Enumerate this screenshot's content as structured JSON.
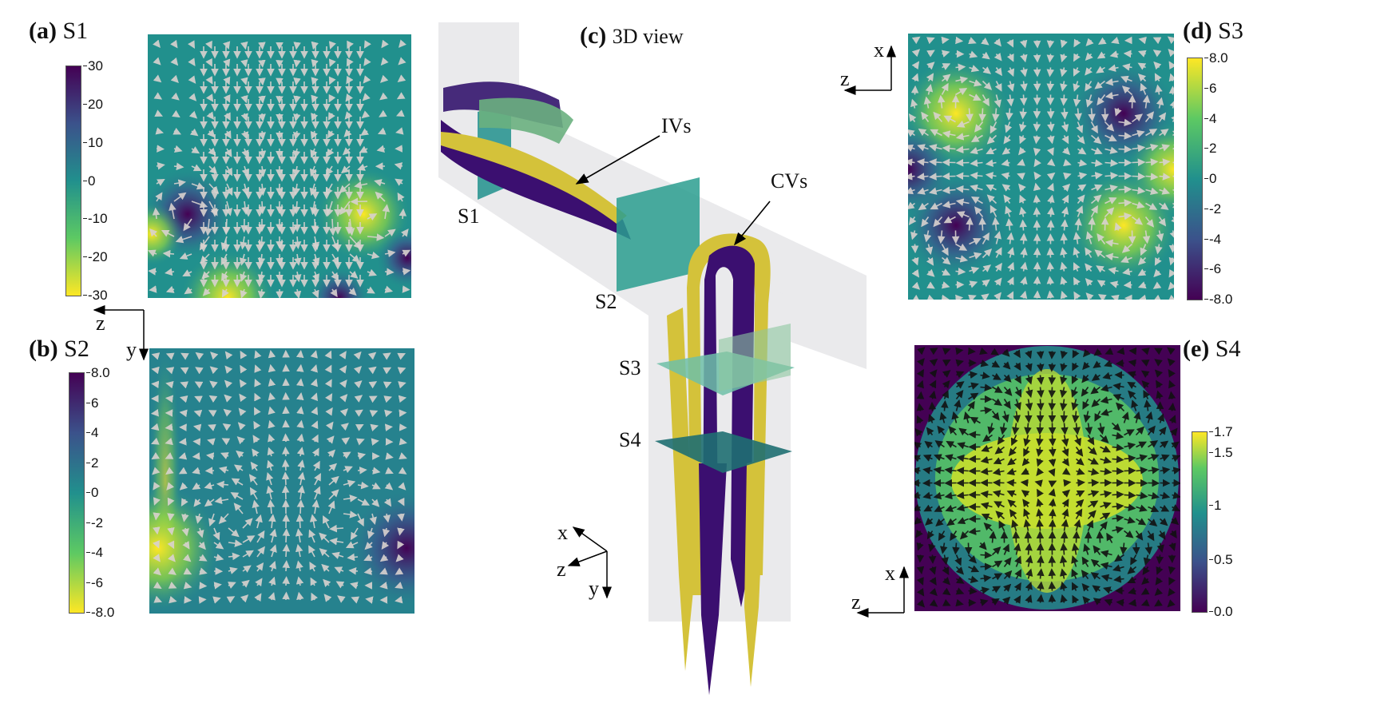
{
  "panels": {
    "a": {
      "letter": "(a)",
      "name": "S1",
      "ticks": [
        "30",
        "20",
        "10",
        "0",
        "-10",
        "-20",
        "-30"
      ]
    },
    "b": {
      "letter": "(b)",
      "name": "S2",
      "ticks": [
        "8.0",
        "6",
        "4",
        "2",
        "0",
        "-2",
        "-4",
        "-6",
        "-8.0"
      ]
    },
    "c": {
      "letter": "(c)",
      "name": "3D view",
      "labels": {
        "ivs": "IVs",
        "cvs": "CVs",
        "s1": "S1",
        "s2": "S2",
        "s3": "S3",
        "s4": "S4"
      }
    },
    "d": {
      "letter": "(d)",
      "name": "S3",
      "ticks": [
        "8.0",
        "6",
        "4",
        "2",
        "0",
        "-2",
        "-4",
        "-6",
        "-8.0"
      ]
    },
    "e": {
      "letter": "(e)",
      "name": "S4",
      "ticks": [
        "1.7",
        "1.5",
        "1",
        "0.5",
        "0.0"
      ]
    }
  },
  "axes": {
    "ab": {
      "horizontal": "z",
      "vertical": "y"
    },
    "c": {
      "x": "x",
      "z": "z",
      "y": "y"
    },
    "d": {
      "vertical": "x",
      "horizontal": "z"
    },
    "e": {
      "vertical": "x",
      "horizontal": "z"
    }
  },
  "colors": {
    "viridis_dark": "#440154",
    "viridis_mid": "#21908d",
    "viridis_yellow": "#fde725",
    "arrow_light": "#d9d2cf",
    "arrow_dark": "#111111"
  }
}
